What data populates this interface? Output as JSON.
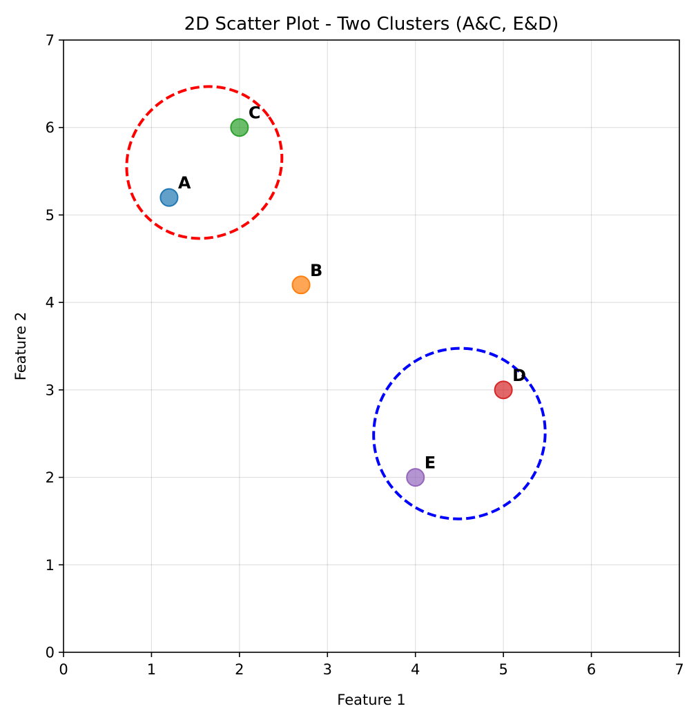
{
  "chart_data": {
    "type": "scatter",
    "title": "2D Scatter Plot - Two Clusters (A&C, E&D)",
    "xlabel": "Feature 1",
    "ylabel": "Feature 2",
    "xlim": [
      0,
      7
    ],
    "ylim": [
      0,
      7
    ],
    "xticks": [
      0,
      1,
      2,
      3,
      4,
      5,
      6,
      7
    ],
    "yticks": [
      0,
      1,
      2,
      3,
      4,
      5,
      6,
      7
    ],
    "grid": true,
    "points": [
      {
        "label": "A",
        "x": 1.2,
        "y": 5.2,
        "color": "#1f77b4"
      },
      {
        "label": "B",
        "x": 2.7,
        "y": 4.2,
        "color": "#ff7f0e"
      },
      {
        "label": "C",
        "x": 2.0,
        "y": 6.0,
        "color": "#2ca02c"
      },
      {
        "label": "D",
        "x": 5.0,
        "y": 3.0,
        "color": "#d62728"
      },
      {
        "label": "E",
        "x": 4.0,
        "y": 2.0,
        "color": "#9467bd"
      }
    ],
    "clusters": [
      {
        "members": [
          "A",
          "C"
        ],
        "color": "#ff0000",
        "center": [
          1.6,
          5.6
        ],
        "rx": 0.9,
        "ry": 0.85,
        "line_style": "dashed"
      },
      {
        "members": [
          "E",
          "D"
        ],
        "color": "#0000ff",
        "center": [
          4.5,
          2.5
        ],
        "rx": 0.98,
        "ry": 0.97,
        "line_style": "dashed"
      }
    ]
  }
}
